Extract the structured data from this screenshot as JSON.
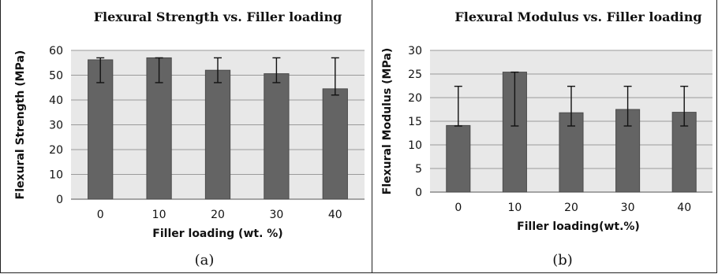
{
  "chart_data": [
    {
      "type": "bar",
      "panel_label": "(a)",
      "title": "Flexural Strength vs. Filler loading",
      "xlabel": "Filler loading (wt. %)",
      "ylabel": "Flexural Strength (MPa)",
      "categories": [
        "0",
        "10",
        "20",
        "30",
        "40"
      ],
      "values": [
        56.2,
        57.0,
        52.0,
        50.6,
        44.5
      ],
      "error_low": [
        9.2,
        10.0,
        5.0,
        3.6,
        2.5
      ],
      "error_high": [
        0.8,
        0.0,
        5.0,
        6.4,
        12.5
      ],
      "ylim": [
        0,
        60
      ],
      "yticks": [
        "0",
        "10",
        "20",
        "30",
        "40",
        "50",
        "60"
      ],
      "grid": true,
      "bar_color": "#646464",
      "plot_background": "#e8e8e8"
    },
    {
      "type": "bar",
      "panel_label": "(b)",
      "title": "Flexural Modulus vs. Filler loading",
      "xlabel": "Filler loading(wt.%)",
      "ylabel": "Flexural Modulus (MPa)",
      "categories": [
        "0",
        "10",
        "20",
        "30",
        "40"
      ],
      "values": [
        14.1,
        25.4,
        16.8,
        17.5,
        16.9
      ],
      "error_low": [
        0.1,
        11.4,
        2.8,
        3.5,
        2.9
      ],
      "error_high": [
        8.3,
        0.0,
        5.6,
        4.9,
        5.5
      ],
      "ylim": [
        0,
        30
      ],
      "yticks": [
        "0",
        "5",
        "10",
        "15",
        "20",
        "25",
        "30"
      ],
      "grid": true,
      "bar_color": "#646464",
      "plot_background": "#e8e8e8"
    }
  ]
}
